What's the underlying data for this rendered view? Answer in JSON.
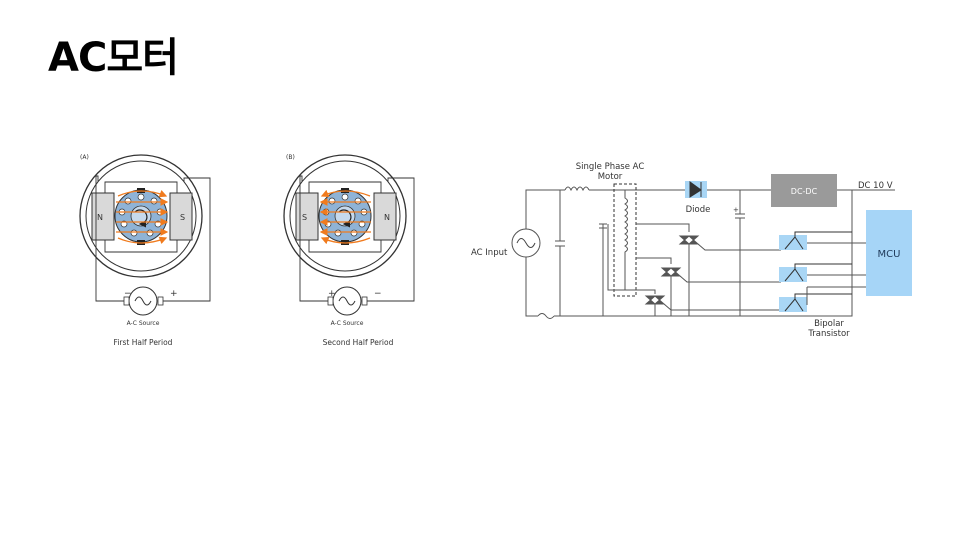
{
  "slide": {
    "title": "AC모터"
  },
  "motor_a": {
    "panel_label": "(A)",
    "north_pole": "N",
    "south_pole": "S",
    "minus_sign": "−",
    "plus_sign": "+",
    "source_label": "A-C Source",
    "caption": "First Half Period"
  },
  "motor_b": {
    "panel_label": "(B)",
    "south_pole": "S",
    "north_pole": "N",
    "plus_sign": "+",
    "minus_sign": "−",
    "source_label": "A-C Source",
    "caption": "Second Half Period"
  },
  "circuit": {
    "motor_label_1": "Single Phase AC",
    "motor_label_2": "Motor",
    "diode_label": "Diode",
    "dcdc_label": "DC-DC",
    "dc_out_label": "DC 10 V",
    "ac_input_label": "AC Input",
    "mcu_label": "MCU",
    "transistor_label_1": "Bipolar",
    "transistor_label_2": "Transistor",
    "capacitor_polarity": "+"
  },
  "colors": {
    "accent_blue": "#a9d6f5",
    "mcu_blue": "#a6d5f7",
    "dcdc_gray": "#9a9a9a",
    "field_arrow": "#f07b1e",
    "rotor_blue": "#8fb3d6",
    "wire": "#555555"
  }
}
